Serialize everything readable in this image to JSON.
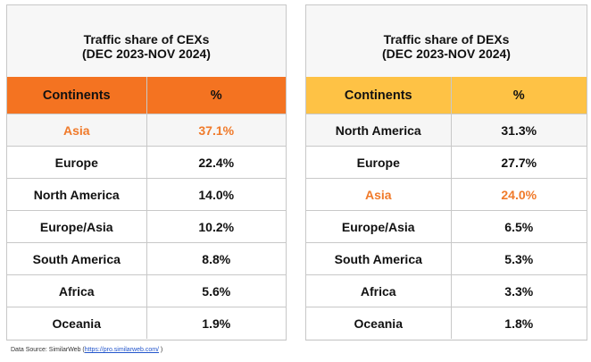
{
  "chart_data": [
    {
      "type": "table",
      "title_line1": "Traffic share of CEXs",
      "title_line2": "(DEC 2023-NOV 2024)",
      "columns": [
        "Continents",
        "%"
      ],
      "rows": [
        {
          "continent": "Asia",
          "value": "37.1%",
          "highlight": true
        },
        {
          "continent": "Europe",
          "value": "22.4%",
          "highlight": false
        },
        {
          "continent": "North America",
          "value": "14.0%",
          "highlight": false
        },
        {
          "continent": "Europe/Asia",
          "value": "10.2%",
          "highlight": false
        },
        {
          "continent": "South America",
          "value": "8.8%",
          "highlight": false
        },
        {
          "continent": "Africa",
          "value": "5.6%",
          "highlight": false
        },
        {
          "continent": "Oceania",
          "value": "1.9%",
          "highlight": false
        }
      ],
      "header_color": "#f47321"
    },
    {
      "type": "table",
      "title_line1": "Traffic share of DEXs",
      "title_line2": "(DEC 2023-NOV 2024)",
      "columns": [
        "Continents",
        "%"
      ],
      "rows": [
        {
          "continent": "North America",
          "value": "31.3%",
          "highlight": false
        },
        {
          "continent": "Europe",
          "value": "27.7%",
          "highlight": false
        },
        {
          "continent": "Asia",
          "value": "24.0%",
          "highlight": true
        },
        {
          "continent": "Europe/Asia",
          "value": "6.5%",
          "highlight": false
        },
        {
          "continent": "South America",
          "value": "5.3%",
          "highlight": false
        },
        {
          "continent": "Africa",
          "value": "3.3%",
          "highlight": false
        },
        {
          "continent": "Oceania",
          "value": "1.8%",
          "highlight": false
        }
      ],
      "header_color": "#fec245"
    }
  ],
  "highlight_color": "#f07a2a",
  "source": {
    "prefix": "Data Source: SimilarWeb (",
    "link": "https://pro.similarweb.com/",
    "suffix": " )"
  }
}
